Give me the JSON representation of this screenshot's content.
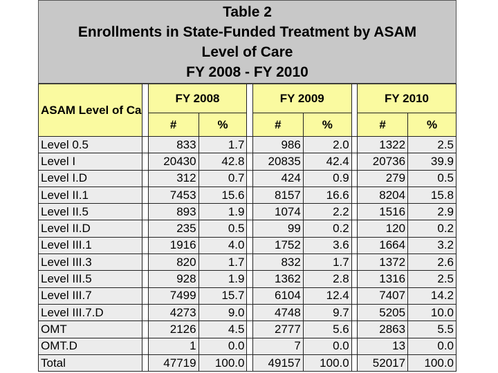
{
  "title": {
    "line1": "Table 2",
    "line2": "Enrollments in State-Funded Treatment by ASAM",
    "line3": "Level of Care",
    "line4": "FY 2008 - FY 2010"
  },
  "table": {
    "row_header": "ASAM Level of Care",
    "years": [
      "FY 2008",
      "FY 2009",
      "FY 2010"
    ],
    "sub_headers": [
      "#",
      "%"
    ],
    "rows": [
      {
        "label": "Level 0.5",
        "values": [
          "833",
          "1.7",
          "986",
          "2.0",
          "1322",
          "2.5"
        ]
      },
      {
        "label": "Level I",
        "values": [
          "20430",
          "42.8",
          "20835",
          "42.4",
          "20736",
          "39.9"
        ]
      },
      {
        "label": "Level I.D",
        "values": [
          "312",
          "0.7",
          "424",
          "0.9",
          "279",
          "0.5"
        ]
      },
      {
        "label": "Level II.1",
        "values": [
          "7453",
          "15.6",
          "8157",
          "16.6",
          "8204",
          "15.8"
        ]
      },
      {
        "label": "Level II.5",
        "values": [
          "893",
          "1.9",
          "1074",
          "2.2",
          "1516",
          "2.9"
        ]
      },
      {
        "label": "Level II.D",
        "values": [
          "235",
          "0.5",
          "99",
          "0.2",
          "120",
          "0.2"
        ]
      },
      {
        "label": "Level III.1",
        "values": [
          "1916",
          "4.0",
          "1752",
          "3.6",
          "1664",
          "3.2"
        ]
      },
      {
        "label": "Level III.3",
        "values": [
          "820",
          "1.7",
          "832",
          "1.7",
          "1372",
          "2.6"
        ]
      },
      {
        "label": "Level III.5",
        "values": [
          "928",
          "1.9",
          "1362",
          "2.8",
          "1316",
          "2.5"
        ]
      },
      {
        "label": "Level III.7",
        "values": [
          "7499",
          "15.7",
          "6104",
          "12.4",
          "7407",
          "14.2"
        ]
      },
      {
        "label": "Level III.7.D",
        "values": [
          "4273",
          "9.0",
          "4748",
          "9.7",
          "5205",
          "10.0"
        ]
      },
      {
        "label": "OMT",
        "values": [
          "2126",
          "4.5",
          "2777",
          "5.6",
          "2863",
          "5.5"
        ]
      },
      {
        "label": "OMT.D",
        "values": [
          "1",
          "0.0",
          "7",
          "0.0",
          "13",
          "0.0"
        ]
      },
      {
        "label": "Total",
        "values": [
          "47719",
          "100.0",
          "49157",
          "100.0",
          "52017",
          "100.0"
        ]
      }
    ]
  }
}
